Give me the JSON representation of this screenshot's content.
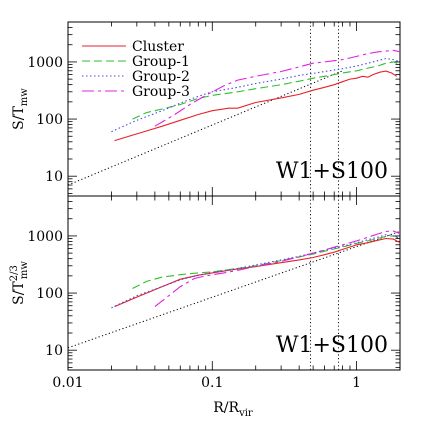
{
  "chart_data": [
    {
      "type": "line",
      "panel": "top",
      "xlabel": "R/R_vir",
      "ylabel": "S/T_mw",
      "ylabel_base": "S/T",
      "ylabel_sub": "mw",
      "ylabel_sup": "",
      "x_scale": "log",
      "y_scale": "log",
      "xlim": [
        0.01,
        2.0
      ],
      "ylim": [
        4.5,
        5000
      ],
      "y_ticks": [
        10,
        100,
        1000
      ],
      "y_tick_labels": [
        "10",
        "100",
        "1000"
      ],
      "annotation": "W1+S100",
      "legend_position": "top-left",
      "vertical_lines_x": [
        0.48,
        0.75
      ],
      "reference_line": {
        "x": [
          0.01,
          0.8
        ],
        "y": [
          7,
          700
        ]
      },
      "series": [
        {
          "name": "Cluster",
          "color": "#e8222a",
          "dash": "solid",
          "x": [
            0.021,
            0.03,
            0.045,
            0.06,
            0.08,
            0.1,
            0.13,
            0.15,
            0.2,
            0.3,
            0.4,
            0.5,
            0.6,
            0.7,
            0.8,
            0.9,
            1.0,
            1.1,
            1.2,
            1.3,
            1.45,
            1.6,
            1.75,
            1.9
          ],
          "y": [
            42,
            55,
            75,
            95,
            120,
            140,
            155,
            155,
            195,
            235,
            270,
            320,
            360,
            400,
            450,
            500,
            520,
            560,
            540,
            600,
            660,
            690,
            640,
            560
          ]
        },
        {
          "name": "Group-1",
          "color": "#2fbf2f",
          "dash": "8 4",
          "x": [
            0.028,
            0.035,
            0.045,
            0.06,
            0.08,
            0.1,
            0.15,
            0.2,
            0.3,
            0.4,
            0.5,
            0.6,
            0.8,
            1.0,
            1.2,
            1.4,
            1.6,
            1.8,
            2.0
          ],
          "y": [
            100,
            130,
            150,
            180,
            230,
            260,
            300,
            340,
            400,
            460,
            520,
            560,
            640,
            700,
            780,
            850,
            950,
            1000,
            900
          ]
        },
        {
          "name": "Group-2",
          "color": "#4a4ae0",
          "dash": "1.5 2.5",
          "x": [
            0.02,
            0.03,
            0.045,
            0.06,
            0.08,
            0.1,
            0.15,
            0.2,
            0.3,
            0.4,
            0.5,
            0.6,
            0.8,
            1.0,
            1.2,
            1.4,
            1.6,
            1.8,
            2.0
          ],
          "y": [
            60,
            95,
            140,
            190,
            250,
            300,
            360,
            420,
            500,
            580,
            630,
            680,
            760,
            850,
            950,
            1050,
            1150,
            1100,
            1000
          ]
        },
        {
          "name": "Group-3",
          "color": "#e020e0",
          "dash": "12 4 3 4",
          "x": [
            0.04,
            0.055,
            0.07,
            0.09,
            0.12,
            0.15,
            0.2,
            0.3,
            0.4,
            0.5,
            0.6,
            0.7,
            0.8,
            1.0,
            1.2,
            1.4,
            1.6,
            1.8,
            2.0
          ],
          "y": [
            75,
            120,
            180,
            260,
            380,
            480,
            560,
            680,
            820,
            950,
            1000,
            1050,
            1100,
            1250,
            1400,
            1500,
            1550,
            1600,
            1500
          ]
        }
      ]
    },
    {
      "type": "line",
      "panel": "bottom",
      "xlabel": "R/R_vir",
      "ylabel": "S/T_mw^2/3",
      "ylabel_base": "S/T",
      "ylabel_sub": "mw",
      "ylabel_sup": "2/3",
      "x_scale": "log",
      "y_scale": "log",
      "xlim": [
        0.01,
        2.0
      ],
      "ylim": [
        4.5,
        5000
      ],
      "x_ticks": [
        0.01,
        0.1,
        1
      ],
      "x_tick_labels": [
        "0.01",
        "0.1",
        "1"
      ],
      "y_ticks": [
        10,
        100,
        1000
      ],
      "y_tick_labels": [
        "10",
        "100",
        "1000"
      ],
      "annotation": "W1+S100",
      "vertical_lines_x": [
        0.48,
        0.75
      ],
      "reference_line": {
        "x": [
          0.01,
          2.0
        ],
        "y": [
          11,
          1200
        ]
      },
      "series": [
        {
          "name": "Cluster",
          "color": "#e8222a",
          "dash": "solid",
          "x": [
            0.021,
            0.03,
            0.045,
            0.06,
            0.08,
            0.1,
            0.13,
            0.15,
            0.2,
            0.3,
            0.4,
            0.5,
            0.6,
            0.7,
            0.8,
            0.9,
            1.0,
            1.2,
            1.4,
            1.6,
            1.8,
            2.0
          ],
          "y": [
            58,
            85,
            130,
            175,
            205,
            225,
            250,
            265,
            290,
            340,
            380,
            420,
            470,
            520,
            580,
            640,
            700,
            760,
            840,
            900,
            880,
            760
          ]
        },
        {
          "name": "Group-1",
          "color": "#2fbf2f",
          "dash": "8 4",
          "x": [
            0.028,
            0.035,
            0.045,
            0.06,
            0.08,
            0.1,
            0.15,
            0.2,
            0.3,
            0.4,
            0.5,
            0.6,
            0.8,
            1.0,
            1.2,
            1.4,
            1.6,
            1.8,
            2.0
          ],
          "y": [
            120,
            160,
            190,
            210,
            225,
            235,
            270,
            300,
            370,
            430,
            480,
            540,
            640,
            740,
            820,
            900,
            980,
            1000,
            900
          ]
        },
        {
          "name": "Group-2",
          "color": "#4a4ae0",
          "dash": "1.5 2.5",
          "x": [
            0.02,
            0.03,
            0.045,
            0.06,
            0.08,
            0.1,
            0.15,
            0.2,
            0.3,
            0.4,
            0.5,
            0.6,
            0.8,
            1.0,
            1.2,
            1.4,
            1.6,
            1.8,
            2.0
          ],
          "y": [
            55,
            90,
            130,
            170,
            205,
            230,
            270,
            310,
            380,
            440,
            500,
            560,
            660,
            760,
            860,
            950,
            1050,
            1000,
            900
          ]
        },
        {
          "name": "Group-3",
          "color": "#e020e0",
          "dash": "12 4 3 4",
          "x": [
            0.04,
            0.05,
            0.06,
            0.075,
            0.09,
            0.12,
            0.15,
            0.2,
            0.3,
            0.4,
            0.5,
            0.6,
            0.8,
            1.0,
            1.2,
            1.4,
            1.6,
            1.8,
            2.0
          ],
          "y": [
            58,
            90,
            130,
            180,
            200,
            225,
            250,
            290,
            360,
            430,
            500,
            570,
            700,
            820,
            950,
            1080,
            1200,
            1220,
            1100
          ]
        }
      ]
    }
  ]
}
